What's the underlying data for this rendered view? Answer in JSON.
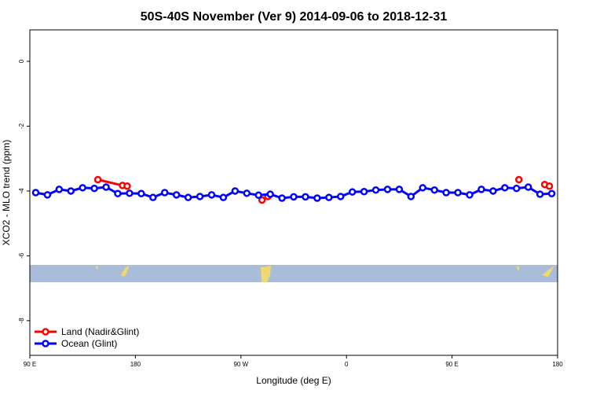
{
  "chart_data": {
    "type": "line",
    "title": "50S-40S November (Ver 9)   2014-09-06 to 2018-12-31",
    "x_label": "Longitude (deg E)",
    "y_label": "XCO2 - MLO trend (ppm)",
    "xlim": [
      90,
      540
    ],
    "xticks": [
      {
        "value": 90,
        "label": "90 E"
      },
      180,
      {
        "value": 270,
        "label": "90 W"
      },
      {
        "value": 360,
        "label": "0"
      },
      {
        "value": 450,
        "label": "90 E"
      },
      {
        "value": 540,
        "label": "180"
      }
    ],
    "ylim": [
      -9.07,
      0.97
    ],
    "yticks": [
      0,
      -2,
      -4,
      -6,
      -8
    ],
    "legend": "bottom-left",
    "series": [
      {
        "name": "Land (Nadir&Glint)",
        "color": "#ff0000",
        "x": [
          148,
          169,
          173,
          null,
          288,
          293,
          null,
          507,
          null,
          529,
          533
        ],
        "values": [
          -3.65,
          -3.83,
          -3.85,
          null,
          -4.28,
          -4.17,
          null,
          -3.65,
          null,
          -3.8,
          -3.85
        ]
      },
      {
        "name": "Ocean (Glint)",
        "color": "#0000ff",
        "x": [
          95,
          105,
          115,
          125,
          135,
          145,
          155,
          165,
          175,
          185,
          195,
          205,
          215,
          225,
          235,
          245,
          255,
          265,
          275,
          285,
          295,
          305,
          315,
          325,
          335,
          345,
          355,
          365,
          375,
          385,
          395,
          405,
          415,
          425,
          435,
          445,
          455,
          465,
          475,
          485,
          495,
          505,
          515,
          525,
          535
        ],
        "values": [
          -4.05,
          -4.12,
          -3.95,
          -4.0,
          -3.9,
          -3.92,
          -3.88,
          -4.08,
          -4.07,
          -4.08,
          -4.2,
          -4.05,
          -4.12,
          -4.2,
          -4.17,
          -4.12,
          -4.2,
          -4.0,
          -4.07,
          -4.13,
          -4.1,
          -4.22,
          -4.18,
          -4.18,
          -4.22,
          -4.2,
          -4.17,
          -4.03,
          -4.02,
          -3.97,
          -3.95,
          -3.95,
          -4.17,
          -3.9,
          -3.97,
          -4.05,
          -4.05,
          -4.12,
          -3.95,
          -4.0,
          -3.9,
          -3.92,
          -3.88,
          -4.1,
          -4.08
        ]
      }
    ]
  }
}
